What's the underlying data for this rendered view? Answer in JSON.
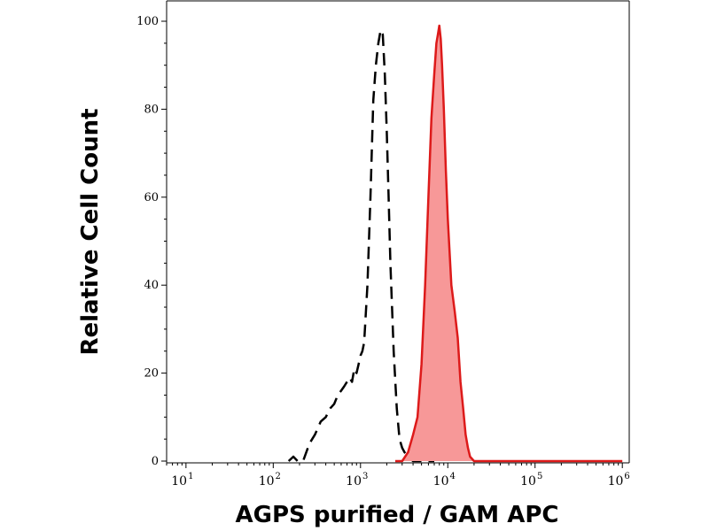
{
  "chart_data": {
    "type": "area",
    "xlabel": "AGPS purified  / GAM APC",
    "ylabel": "Relative Cell Count",
    "x_scale": "log",
    "xlim": [
      6,
      1200000
    ],
    "ylim": [
      0,
      100
    ],
    "x_ticks": [
      {
        "base": "10",
        "exp": "1",
        "value": 10
      },
      {
        "base": "10",
        "exp": "2",
        "value": 100
      },
      {
        "base": "10",
        "exp": "3",
        "value": 1000
      },
      {
        "base": "10",
        "exp": "4",
        "value": 10000
      },
      {
        "base": "10",
        "exp": "5",
        "value": 100000
      },
      {
        "base": "10",
        "exp": "6",
        "value": 1000000
      }
    ],
    "y_ticks": [
      {
        "label": "0",
        "value": 0
      },
      {
        "label": "20",
        "value": 20
      },
      {
        "label": "40",
        "value": 40
      },
      {
        "label": "60",
        "value": 60
      },
      {
        "label": "80",
        "value": 80
      },
      {
        "label": "100",
        "value": 100
      }
    ],
    "grid": false,
    "legend": "none",
    "series": [
      {
        "style": "dashed",
        "color": "#000000",
        "fill": false,
        "x": [
          150,
          170,
          190,
          220,
          260,
          300,
          350,
          400,
          450,
          500,
          550,
          600,
          650,
          700,
          750,
          800,
          850,
          900,
          950,
          1000,
          1050,
          1100,
          1200,
          1300,
          1400,
          1500,
          1600,
          1700,
          1800,
          1900,
          2000,
          2100,
          2200,
          2400,
          2600,
          2800,
          3000,
          3200,
          3500,
          4000,
          5000,
          7000
        ],
        "y": [
          0,
          1,
          0,
          0,
          4,
          6,
          9,
          10,
          12,
          13,
          15,
          16,
          17,
          18,
          19,
          18,
          21,
          20,
          22,
          24,
          25,
          27,
          40,
          60,
          82,
          90,
          95,
          98,
          97,
          88,
          75,
          60,
          45,
          25,
          12,
          5,
          3,
          2,
          1,
          0,
          0,
          0
        ]
      },
      {
        "style": "solid",
        "color": "#dd1a1a",
        "fill": "#f79898",
        "x": [
          2500,
          3000,
          3500,
          4000,
          4500,
          5000,
          5500,
          6000,
          6500,
          7000,
          7400,
          7700,
          8000,
          8300,
          8600,
          9000,
          9500,
          10000,
          11000,
          12000,
          13000,
          14000,
          15000,
          16000,
          17000,
          18000,
          20000,
          25000,
          40000,
          100000,
          1000000
        ],
        "y": [
          0,
          0,
          2,
          6,
          10,
          22,
          40,
          60,
          78,
          88,
          95,
          97,
          99,
          96,
          90,
          80,
          66,
          55,
          40,
          34,
          28,
          18,
          12,
          6,
          3,
          1,
          0,
          0,
          0,
          0,
          0
        ]
      }
    ]
  }
}
